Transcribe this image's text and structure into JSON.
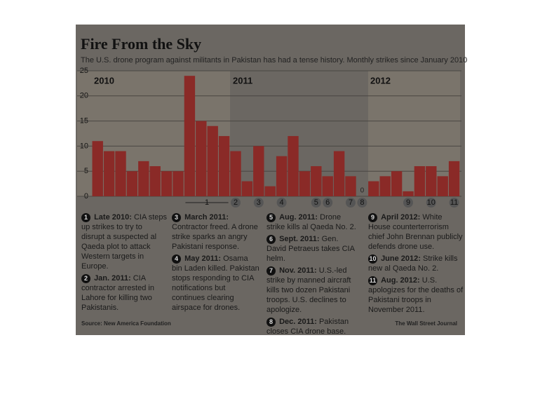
{
  "chart_data": {
    "type": "bar",
    "title": "Fire From the Sky",
    "subtitle": "The U.S. drone program against militants in Pakistan has had a tense history. Monthly strikes since January 2010",
    "year_labels": [
      "2010",
      "2011",
      "2012"
    ],
    "categories": [
      null,
      null,
      null,
      null,
      null,
      null,
      null,
      null,
      null,
      null,
      null,
      null,
      null,
      null,
      null,
      null,
      null,
      null,
      null,
      null,
      null,
      null,
      null,
      null,
      null,
      null,
      null,
      null,
      null,
      null,
      null,
      null
    ],
    "values": [
      11,
      9,
      9,
      5,
      7,
      6,
      5,
      5,
      24,
      15,
      14,
      12,
      9,
      3,
      10,
      2,
      8,
      12,
      5,
      6,
      4,
      9,
      4,
      0,
      3,
      4,
      5,
      1,
      6,
      6,
      4,
      7
    ],
    "color": "#8a2a27",
    "ylim": [
      0,
      25
    ],
    "yticks": [
      0,
      5,
      10,
      15,
      20,
      25
    ],
    "grid": true,
    "markers": [
      "1",
      "2",
      "3",
      "4",
      "5",
      "6",
      "7",
      "8",
      "9",
      "10",
      "11"
    ],
    "annotations": [
      {
        "num": "1",
        "head": "Late 2010:",
        "text": "CIA steps up strikes to try to disrupt a suspected al Qaeda plot to attack Western targets in Europe."
      },
      {
        "num": "2",
        "head": "Jan. 2011:",
        "text": "CIA contractor arrested in Lahore for killing two Pakistanis."
      },
      {
        "num": "3",
        "head": "March 2011:",
        "text": "Contractor freed. A drone strike sparks an angry Pakistani response."
      },
      {
        "num": "4",
        "head": "May 2011:",
        "text": "Osama bin Laden killed. Pakistan stops responding to CIA notifications but continues clearing airspace for drones."
      },
      {
        "num": "5",
        "head": "Aug. 2011:",
        "text": "Drone strike kills al Qaeda No. 2."
      },
      {
        "num": "6",
        "head": "Sept. 2011:",
        "text": "Gen. David Petraeus takes CIA helm."
      },
      {
        "num": "7",
        "head": "Nov. 2011:",
        "text": "U.S.-led strike by manned aircraft kills two dozen Pakistani troops. U.S. declines to apologize."
      },
      {
        "num": "8",
        "head": "Dec. 2011:",
        "text": "Pakistan closes CIA drone base."
      },
      {
        "num": "9",
        "head": "April 2012:",
        "text": "White House counterterrorism chief John Brennan publicly defends drone use."
      },
      {
        "num": "10",
        "head": "June 2012:",
        "text": "Strike kills new al Qaeda No. 2."
      },
      {
        "num": "11",
        "head": "Aug. 2012:",
        "text": "U.S. apologizes for the deaths of Pakistani troops in November 2011."
      }
    ],
    "source": "Source: New America Foundation",
    "credit": "The Wall Street Journal"
  }
}
